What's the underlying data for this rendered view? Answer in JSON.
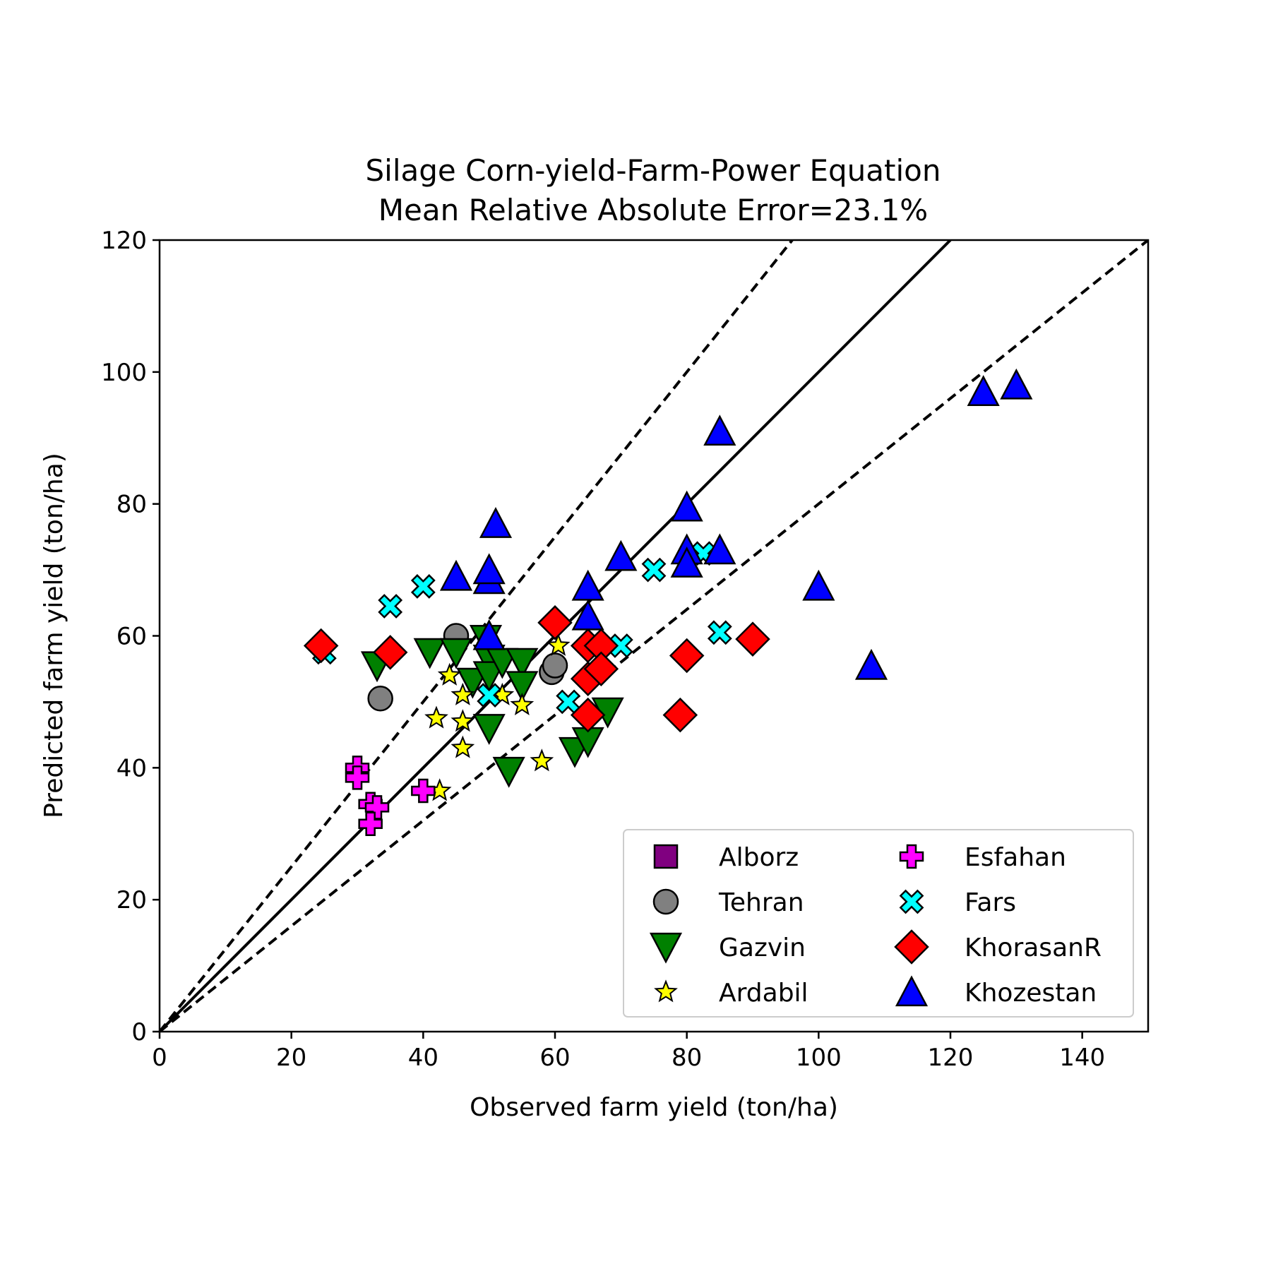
{
  "chart_data": {
    "type": "scatter",
    "title": "Silage Corn-yield-Farm-Power Equation",
    "subtitle": "Mean Relative Absolute Error=23.1%",
    "xlabel": "Observed farm yield (ton/ha)",
    "ylabel": "Predicted farm yield (ton/ha)",
    "xlim": [
      0,
      150
    ],
    "ylim": [
      0,
      120
    ],
    "xticks": [
      "0",
      "20",
      "40",
      "60",
      "80",
      "100",
      "120",
      "140"
    ],
    "yticks": [
      "0",
      "20",
      "40",
      "60",
      "80",
      "100",
      "120"
    ],
    "xtick_values": [
      0,
      20,
      40,
      60,
      80,
      100,
      120,
      140
    ],
    "ytick_values": [
      0,
      20,
      40,
      60,
      80,
      100,
      120
    ],
    "grid": false,
    "legend_position": "lower-right",
    "reference_lines": [
      {
        "style": "solid",
        "slope": 1.0
      },
      {
        "style": "dashed",
        "slope": 1.25
      },
      {
        "style": "dashed",
        "slope": 0.8
      }
    ],
    "series": [
      {
        "name": "Alborz",
        "marker": "square",
        "color": "#800080",
        "points": []
      },
      {
        "name": "Tehran",
        "marker": "circle",
        "color": "#808080",
        "points": [
          [
            33.5,
            50.5
          ],
          [
            45,
            60
          ],
          [
            59.5,
            54.5
          ],
          [
            60,
            55.5
          ]
        ]
      },
      {
        "name": "Gazvin",
        "marker": "triangle-down",
        "color": "#008000",
        "points": [
          [
            33,
            55.5
          ],
          [
            41,
            57.5
          ],
          [
            45,
            57.5
          ],
          [
            47.5,
            53
          ],
          [
            49.5,
            59.5
          ],
          [
            50,
            56.5
          ],
          [
            50,
            54
          ],
          [
            52,
            56
          ],
          [
            55,
            56
          ],
          [
            55,
            52.5
          ],
          [
            50,
            46
          ],
          [
            53,
            39.5
          ],
          [
            63,
            42.5
          ],
          [
            65,
            44
          ],
          [
            68,
            48.5
          ]
        ]
      },
      {
        "name": "Ardabil",
        "marker": "star",
        "color": "#ffff00",
        "points": [
          [
            44,
            54
          ],
          [
            46,
            51
          ],
          [
            42,
            47.5
          ],
          [
            46,
            47
          ],
          [
            46,
            43
          ],
          [
            52,
            51
          ],
          [
            55,
            49.5
          ],
          [
            58,
            41
          ],
          [
            60.5,
            58.5
          ],
          [
            42.5,
            36.5
          ]
        ]
      },
      {
        "name": "Esfahan",
        "marker": "plus",
        "color": "#ff00ff",
        "points": [
          [
            30,
            40
          ],
          [
            30,
            38.5
          ],
          [
            32,
            34.5
          ],
          [
            33,
            34
          ],
          [
            32,
            31.5
          ],
          [
            40,
            36.5
          ]
        ]
      },
      {
        "name": "Fars",
        "marker": "x",
        "color": "#00ffff",
        "points": [
          [
            25,
            57.5
          ],
          [
            35,
            64.5
          ],
          [
            40,
            67.5
          ],
          [
            50,
            51
          ],
          [
            62,
            50
          ],
          [
            70,
            58.5
          ],
          [
            75,
            70
          ],
          [
            82.5,
            72.5
          ],
          [
            85,
            60.5
          ]
        ]
      },
      {
        "name": "KhorasanR",
        "marker": "diamond",
        "color": "#ff0000",
        "points": [
          [
            24.5,
            58.5
          ],
          [
            35,
            57.5
          ],
          [
            60,
            62
          ],
          [
            65,
            58.5
          ],
          [
            67,
            58.5
          ],
          [
            65,
            53.5
          ],
          [
            67,
            55
          ],
          [
            65,
            48
          ],
          [
            79,
            48
          ],
          [
            80,
            57
          ],
          [
            90,
            59.5
          ]
        ]
      },
      {
        "name": "Khozestan",
        "marker": "triangle-up",
        "color": "#0000ff",
        "points": [
          [
            45,
            69
          ],
          [
            50,
            68.5
          ],
          [
            50,
            70
          ],
          [
            50,
            60
          ],
          [
            51,
            77
          ],
          [
            65,
            67.5
          ],
          [
            65,
            63
          ],
          [
            70,
            72
          ],
          [
            80,
            79.5
          ],
          [
            80,
            73
          ],
          [
            80,
            71
          ],
          [
            85,
            91
          ],
          [
            85,
            73
          ],
          [
            100,
            67.5
          ],
          [
            108,
            55.5
          ],
          [
            125,
            97
          ],
          [
            130,
            98
          ]
        ]
      }
    ]
  }
}
